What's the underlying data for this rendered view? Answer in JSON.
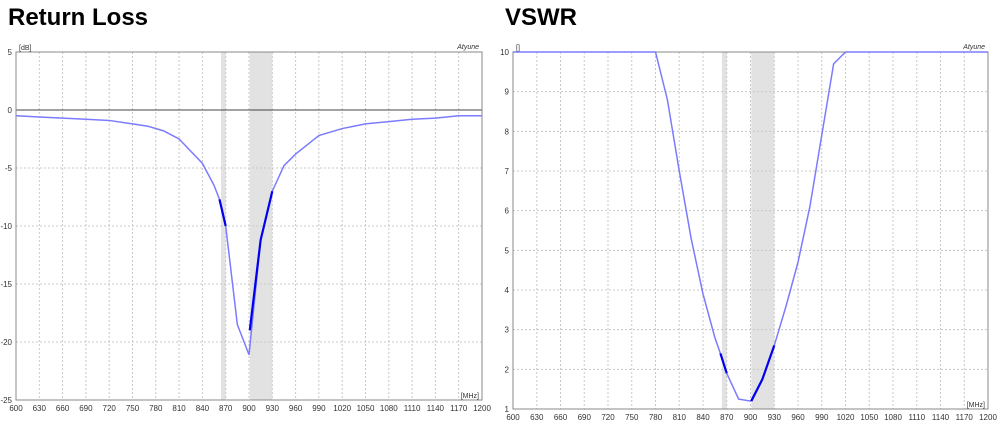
{
  "chart_data": [
    {
      "type": "line",
      "title": "Return Loss",
      "ylabel": "[dB]",
      "xlabel": "[MHz]",
      "brand": "Atyune",
      "xlim": [
        600,
        1200
      ],
      "ylim": [
        -25,
        5
      ],
      "xticks": [
        600,
        630,
        660,
        690,
        720,
        750,
        780,
        810,
        840,
        870,
        900,
        930,
        960,
        990,
        1020,
        1050,
        1080,
        1110,
        1140,
        1170,
        1200
      ],
      "yticks": [
        5,
        0,
        -5,
        -10,
        -15,
        -20,
        -25
      ],
      "grid": true,
      "bands": [
        [
          864,
          870
        ],
        [
          901,
          930
        ]
      ],
      "series": [
        {
          "color": "#7b7bff",
          "x": [
            600,
            630,
            660,
            690,
            720,
            750,
            770,
            790,
            810,
            820,
            840,
            855,
            862,
            870,
            885,
            900,
            915,
            930,
            945,
            960,
            975,
            990,
            1020,
            1050,
            1080,
            1110,
            1140,
            1170,
            1200
          ],
          "y": [
            -0.5,
            -0.6,
            -0.7,
            -0.8,
            -0.9,
            -1.2,
            -1.4,
            -1.8,
            -2.5,
            -3.2,
            -4.6,
            -6.5,
            -7.7,
            -10,
            -18.5,
            -21.1,
            -11.2,
            -7.0,
            -4.8,
            -3.8,
            -3.0,
            -2.2,
            -1.6,
            -1.2,
            -1.0,
            -0.8,
            -0.7,
            -0.5,
            -0.5
          ]
        }
      ],
      "highlight": [
        {
          "color": "#0000ee",
          "x": [
            862,
            870
          ],
          "y": [
            -7.7,
            -10
          ]
        },
        {
          "color": "#0000ee",
          "x": [
            901,
            915,
            930
          ],
          "y": [
            -19,
            -11.2,
            -7.0
          ]
        }
      ],
      "reference_line": 0
    },
    {
      "type": "line",
      "title": "VSWR",
      "ylabel": "[]",
      "xlabel": "[MHz]",
      "brand": "Atyune",
      "xlim": [
        600,
        1200
      ],
      "ylim": [
        1,
        10
      ],
      "xticks": [
        600,
        630,
        660,
        690,
        720,
        750,
        780,
        810,
        840,
        870,
        900,
        930,
        960,
        990,
        1020,
        1050,
        1080,
        1110,
        1140,
        1170,
        1200
      ],
      "yticks": [
        10,
        9,
        8,
        7,
        6,
        5,
        4,
        3,
        2,
        1
      ],
      "grid": true,
      "bands": [
        [
          864,
          870
        ],
        [
          901,
          930
        ]
      ],
      "series": [
        {
          "color": "#7b7bff",
          "x": [
            600,
            780,
            795,
            810,
            825,
            840,
            855,
            862,
            870,
            885,
            900,
            915,
            930,
            945,
            960,
            975,
            990,
            1005,
            1020,
            1200
          ],
          "y": [
            10,
            10,
            8.8,
            7,
            5.3,
            3.9,
            2.8,
            2.4,
            1.9,
            1.25,
            1.2,
            1.75,
            2.6,
            3.6,
            4.7,
            6.1,
            7.9,
            9.7,
            10,
            10
          ]
        }
      ],
      "highlight": [
        {
          "color": "#0000ee",
          "x": [
            862,
            870
          ],
          "y": [
            2.4,
            1.9
          ]
        },
        {
          "color": "#0000ee",
          "x": [
            901,
            915,
            930
          ],
          "y": [
            1.2,
            1.75,
            2.6
          ]
        }
      ]
    }
  ]
}
